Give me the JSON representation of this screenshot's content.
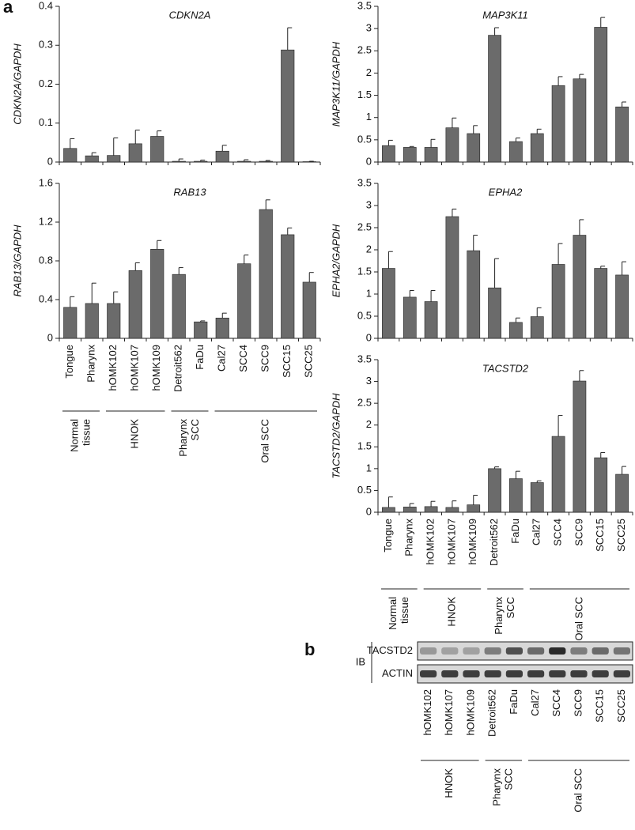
{
  "figure": {
    "panel_a": "a",
    "panel_b": "b"
  },
  "chart_data": [
    {
      "type": "bar",
      "title": "CDKN2A",
      "ylabel": "CDKN2A/GAPDH",
      "color": "#6b6b6b",
      "values": [
        0.035,
        0.016,
        0.017,
        0.047,
        0.066,
        0.002,
        0.002,
        0.028,
        0.002,
        0.002,
        0.288,
        0.001
      ],
      "errors": [
        0.025,
        0.008,
        0.045,
        0.035,
        0.014,
        0.006,
        0.003,
        0.015,
        0.004,
        0.002,
        0.057,
        0.001
      ],
      "ylim": [
        0,
        0.4
      ],
      "yticks": [
        0,
        0.1,
        0.2,
        0.3,
        0.4
      ]
    },
    {
      "type": "bar",
      "title": "RAB13",
      "ylabel": "RAB13/GAPDH",
      "color": "#6b6b6b",
      "categories": [
        "Tongue",
        "Pharynx",
        "hOMK102",
        "hOMK107",
        "hOMK109",
        "Detroit562",
        "FaDu",
        "Cal27",
        "SCC4",
        "SCC9",
        "SCC15",
        "SCC25"
      ],
      "values": [
        0.32,
        0.36,
        0.36,
        0.7,
        0.92,
        0.66,
        0.17,
        0.21,
        0.77,
        1.33,
        1.07,
        0.58
      ],
      "errors": [
        0.11,
        0.21,
        0.12,
        0.08,
        0.09,
        0.07,
        0.01,
        0.05,
        0.09,
        0.1,
        0.07,
        0.1
      ],
      "ylim": [
        0,
        1.6
      ],
      "yticks": [
        0,
        0.4,
        0.8,
        1.2,
        1.6
      ],
      "groups": [
        {
          "label": [
            "Normal",
            "tissue"
          ],
          "count": 2
        },
        {
          "label": [
            "HNOK"
          ],
          "count": 3
        },
        {
          "label": [
            "Pharynx",
            "SCC"
          ],
          "count": 2
        },
        {
          "label": [
            "Oral SCC"
          ],
          "count": 5
        }
      ]
    },
    {
      "type": "bar",
      "title": "MAP3K11",
      "ylabel": "MAP3K11/GAPDH",
      "color": "#6b6b6b",
      "values": [
        0.37,
        0.33,
        0.33,
        0.77,
        0.64,
        2.85,
        0.46,
        0.64,
        1.72,
        1.87,
        3.03,
        1.24
      ],
      "errors": [
        0.12,
        0.02,
        0.18,
        0.22,
        0.18,
        0.17,
        0.08,
        0.1,
        0.2,
        0.1,
        0.22,
        0.11
      ],
      "ylim": [
        0,
        3.5
      ],
      "yticks": [
        0,
        0.5,
        1,
        1.5,
        2,
        2.5,
        3,
        3.5
      ]
    },
    {
      "type": "bar",
      "title": "EPHA2",
      "ylabel": "EPHA2/GAPDH",
      "color": "#6b6b6b",
      "values": [
        1.58,
        0.93,
        0.83,
        2.75,
        1.98,
        1.14,
        0.36,
        0.49,
        1.67,
        2.33,
        1.58,
        1.43
      ],
      "errors": [
        0.38,
        0.15,
        0.25,
        0.17,
        0.35,
        0.66,
        0.1,
        0.2,
        0.47,
        0.35,
        0.05,
        0.3
      ],
      "ylim": [
        0,
        3.5
      ],
      "yticks": [
        0,
        0.5,
        1,
        1.5,
        2,
        2.5,
        3,
        3.5
      ]
    },
    {
      "type": "bar",
      "title": "TACSTD2",
      "ylabel": "TACSTD2/GAPDH",
      "color": "#6b6b6b",
      "categories": [
        "Tongue",
        "Pharynx",
        "hOMK102",
        "hOMK107",
        "hOMK109",
        "Detroit562",
        "FaDu",
        "Cal27",
        "SCC4",
        "SCC9",
        "SCC15",
        "SCC25"
      ],
      "values": [
        0.11,
        0.12,
        0.13,
        0.11,
        0.17,
        1.0,
        0.77,
        0.68,
        1.74,
        3.01,
        1.25,
        0.87
      ],
      "errors": [
        0.24,
        0.08,
        0.12,
        0.15,
        0.22,
        0.04,
        0.17,
        0.04,
        0.48,
        0.24,
        0.12,
        0.18
      ],
      "ylim": [
        0,
        3.5
      ],
      "yticks": [
        0,
        0.5,
        1,
        1.5,
        2,
        2.5,
        3,
        3.5
      ],
      "groups": [
        {
          "label": [
            "Normal",
            "tissue"
          ],
          "count": 2
        },
        {
          "label": [
            "HNOK"
          ],
          "count": 3
        },
        {
          "label": [
            "Pharynx",
            "SCC"
          ],
          "count": 2
        },
        {
          "label": [
            "Oral SCC"
          ],
          "count": 5
        }
      ]
    }
  ],
  "blot": {
    "method": "IB",
    "rows": [
      "TACSTD2",
      "ACTIN"
    ],
    "lanes": [
      "hOMK102",
      "hOMK107",
      "hOMK109",
      "Detroit562",
      "FaDu",
      "Cal27",
      "SCC4",
      "SCC9",
      "SCC15",
      "SCC25"
    ],
    "groups": [
      {
        "label": [
          "HNOK"
        ],
        "count": 3
      },
      {
        "label": [
          "Pharynx",
          "SCC"
        ],
        "count": 2
      },
      {
        "label": [
          "Oral SCC"
        ],
        "count": 5
      }
    ]
  }
}
